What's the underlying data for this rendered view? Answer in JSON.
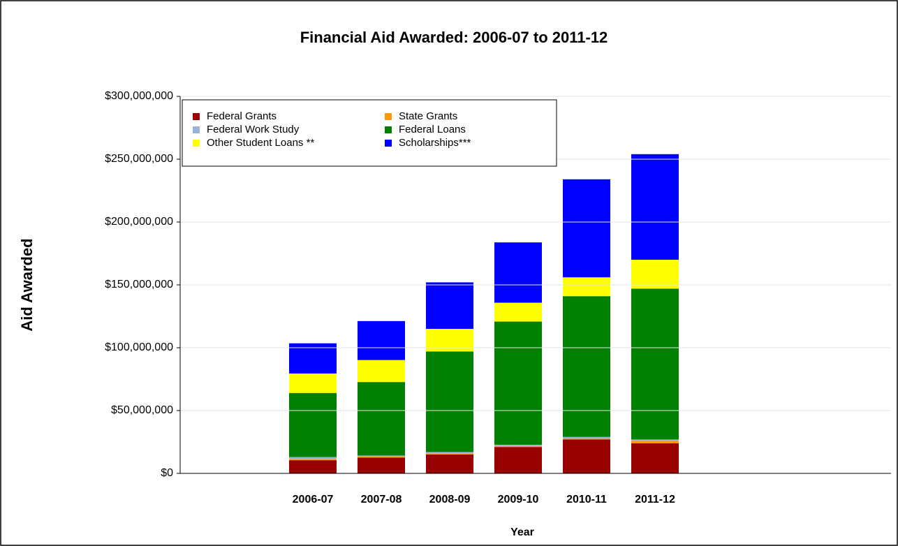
{
  "chart_data": {
    "type": "stacked_bar",
    "title": "Financial Aid Awarded: 2006-07 to 2011-12",
    "x_label": "Year",
    "y_label": "Aid Awarded",
    "categories": [
      "2006-07",
      "2007-08",
      "2008-09",
      "2009-10",
      "2010-11",
      "2011-12"
    ],
    "series": [
      {
        "name": "Federal Grants",
        "color": "#990000",
        "values": [
          10500000,
          12500000,
          15000000,
          21000000,
          27000000,
          24000000
        ]
      },
      {
        "name": "State Grants",
        "color": "#ff9900",
        "values": [
          1000000,
          1000000,
          1000000,
          800000,
          500000,
          2000000
        ]
      },
      {
        "name": "Federal Work Study",
        "color": "#99b3d9",
        "values": [
          1500000,
          700000,
          1000000,
          1000000,
          1500000,
          1000000
        ]
      },
      {
        "name": "Federal Loans",
        "color": "#008000",
        "values": [
          51000000,
          58500000,
          80000000,
          98000000,
          112000000,
          120000000
        ]
      },
      {
        "name": "Other Student Loans **",
        "color": "#ffff00",
        "values": [
          15500000,
          17500000,
          18000000,
          15000000,
          15000000,
          23000000
        ]
      },
      {
        "name": "Scholarships***",
        "color": "#0000ff",
        "values": [
          24000000,
          31000000,
          37000000,
          48000000,
          78000000,
          84000000
        ]
      }
    ],
    "ylim": [
      0,
      300000000
    ],
    "yticks": [
      {
        "value": 0,
        "label": "$0"
      },
      {
        "value": 50000000,
        "label": "$50,000,000"
      },
      {
        "value": 100000000,
        "label": "$100,000,000"
      },
      {
        "value": 150000000,
        "label": "$150,000,000"
      },
      {
        "value": 200000000,
        "label": "$200,000,000"
      },
      {
        "value": 250000000,
        "label": "$250,000,000"
      },
      {
        "value": 300000000,
        "label": "$300,000,000"
      }
    ],
    "grid": true,
    "legend": "top-left"
  }
}
